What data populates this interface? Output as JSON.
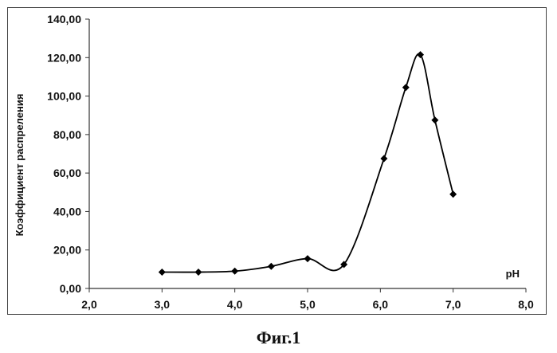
{
  "chart_data": {
    "type": "line",
    "title": "",
    "xlabel": "pH",
    "ylabel": "Коэффициент распреления",
    "xlim": [
      2.0,
      8.0
    ],
    "ylim": [
      0.0,
      140.0
    ],
    "x_ticks": [
      "2,0",
      "3,0",
      "4,0",
      "5,0",
      "6,0",
      "7,0",
      "8,0"
    ],
    "y_ticks": [
      "0,00",
      "20,00",
      "40,00",
      "60,00",
      "80,00",
      "100,00",
      "120,00",
      "140,00"
    ],
    "smooth": true,
    "marker": "diamond",
    "grid": false,
    "color": "#000000",
    "series": [
      {
        "x": [
          3.0,
          3.5,
          4.0,
          4.5,
          5.0,
          5.5,
          6.05,
          6.35,
          6.55,
          6.75,
          7.0
        ],
        "y": [
          8.5,
          8.5,
          9.0,
          11.5,
          15.5,
          12.5,
          67.5,
          104.5,
          121.5,
          87.5,
          49.0
        ]
      }
    ]
  },
  "caption": "Фиг.1"
}
